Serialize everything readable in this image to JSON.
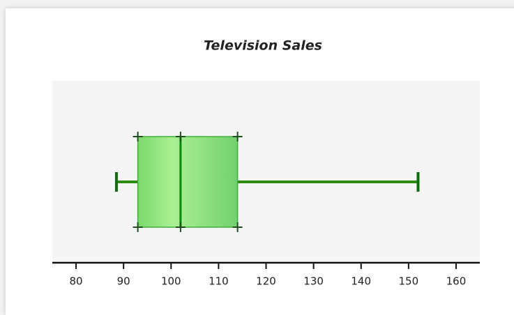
{
  "chart_data": {
    "type": "box",
    "title": "Television Sales",
    "min": 88.5,
    "q1": 93,
    "median": 102,
    "q3": 114,
    "max": 152,
    "color": "#86dc73",
    "line_color": "#2e8b10",
    "xlim": [
      75,
      165
    ],
    "xticks": [
      80,
      90,
      100,
      110,
      120,
      130,
      140,
      150,
      160
    ]
  }
}
